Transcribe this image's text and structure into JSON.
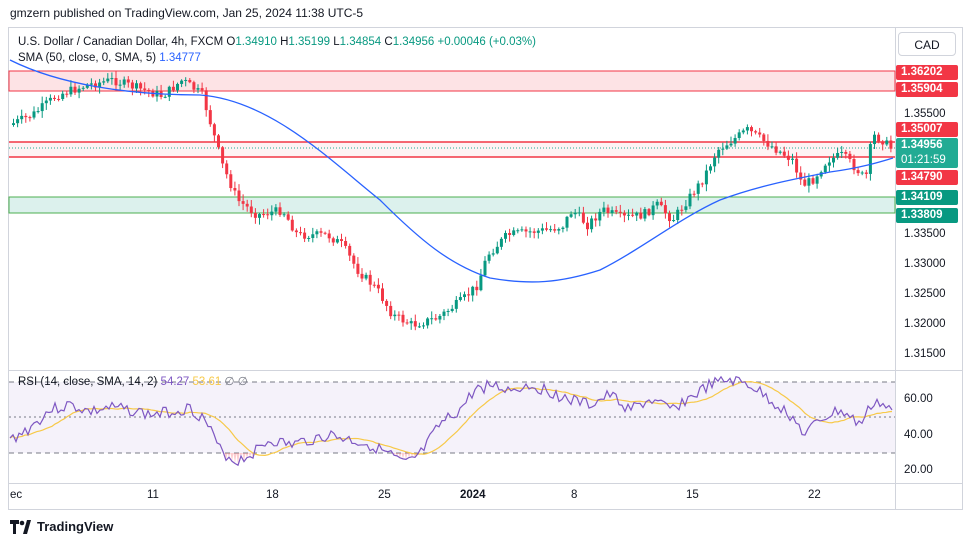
{
  "header": {
    "published": "gmzern published on TradingView.com, Jan 25, 2024 11:38 UTC-5"
  },
  "symbol": {
    "name": "U.S. Dollar / Canadian Dollar, 4h, FXCM",
    "open_label": "O",
    "open": "1.34910",
    "high_label": "H",
    "high": "1.35199",
    "low_label": "L",
    "low": "1.34854",
    "close_label": "C",
    "close": "1.34956",
    "change": "+0.00046 (+0.03%)"
  },
  "indicators": {
    "sma_label": "SMA (50, close, 0, SMA, 5)",
    "sma_value": "1.34777",
    "rsi_label": "RSI (14, close, SMA, 14, 2)",
    "rsi_value": "54.27",
    "rsi_sma_value": "53.61",
    "rsi_extra": "∅ ∅"
  },
  "currency": "CAD",
  "price_axis": {
    "ticks": [
      "1.35500",
      "1.33500",
      "1.33000",
      "1.32500",
      "1.32000",
      "1.31500"
    ],
    "labels": {
      "l1": "1.36202",
      "l2": "1.35904",
      "l3": "1.35007",
      "l4": "1.34790",
      "l5": "1.34109",
      "l6": "1.33809"
    },
    "current_price": "1.34956",
    "countdown": "01:21:59"
  },
  "rsi_axis": {
    "ticks": [
      "60.00",
      "40.00",
      "20.00"
    ]
  },
  "time_axis": [
    "ec",
    "11",
    "18",
    "25",
    "2024",
    "8",
    "15",
    "22"
  ],
  "footer": {
    "brand": "TradingView"
  },
  "colors": {
    "up": "#089981",
    "down": "#f23645",
    "sma": "#2962ff",
    "rsi": "#7e57c2",
    "rsi_sma": "#f7c948"
  }
}
